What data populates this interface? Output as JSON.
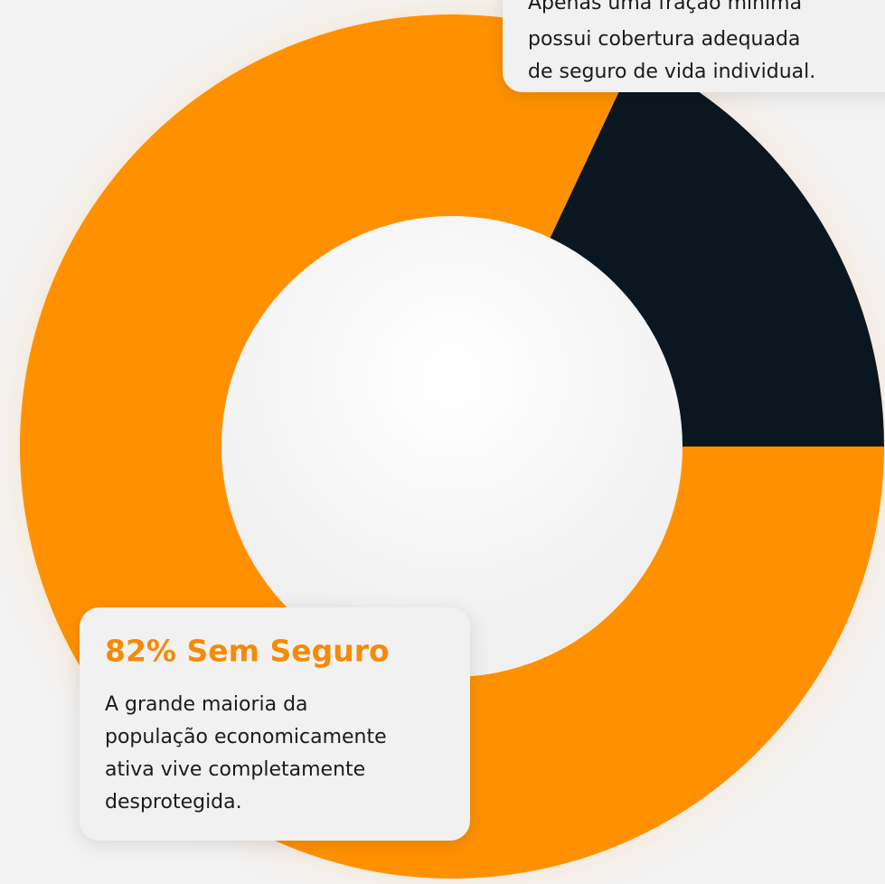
{
  "chart_data": {
    "type": "donut",
    "values": [
      82,
      18
    ],
    "colors": [
      "#ff9100",
      "#0a1720"
    ],
    "annotations": [
      {
        "lines": [
          "Apenas uma fração mínima",
          "possui cobertura adequada",
          "de seguro de vida individual."
        ]
      },
      {
        "title": "82% Sem Seguro",
        "lines": [
          "A grande maioria da",
          "população economicamente",
          "ativa vive completamente",
          "desprotegida."
        ]
      }
    ]
  }
}
